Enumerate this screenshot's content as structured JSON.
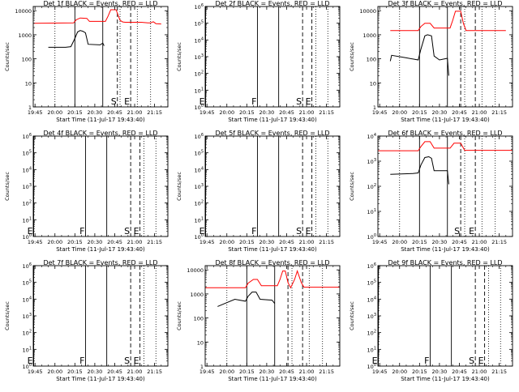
{
  "chart_data": [
    {
      "type": "line",
      "title": "Det 1f BLACK = Events, RED = LLD",
      "ylabel": "Counts/sec",
      "xlabel": "Start Time (11-Jul-17 19:43:40)",
      "x_ticks": [
        "19:45",
        "20:00",
        "20:15",
        "20:30",
        "20:45",
        "21:00",
        "21:15"
      ],
      "y_scale": "log",
      "y_ticks": [
        "1",
        "10",
        "100",
        "1000",
        "10000"
      ],
      "ylim": [
        1,
        15000
      ],
      "xlim": [
        "19:43:40",
        "21:25:00"
      ],
      "markers": [
        {
          "label": "",
          "time": "20:15",
          "style": "solid"
        },
        {
          "label": "",
          "time": "20:36",
          "style": "solid"
        },
        {
          "label": "S",
          "time": "20:47",
          "style": "dashed"
        },
        {
          "label": "E",
          "time": "20:57",
          "style": "dashed"
        }
      ],
      "gridlines": [
        "20:00",
        "20:49",
        "21:02",
        "21:12"
      ],
      "series": [
        {
          "name": "BLACK = Events",
          "color": "#000000",
          "segments": [
            [
              [
                "19:55",
                300
              ],
              [
                "20:08",
                300
              ],
              [
                "20:12",
                320
              ],
              [
                "20:15",
                700
              ],
              [
                "20:17",
                1300
              ],
              [
                "20:19",
                1500
              ],
              [
                "20:21",
                1400
              ],
              [
                "20:23",
                1200
              ],
              [
                "20:25",
                400
              ],
              [
                "20:34",
                380
              ],
              [
                "20:36",
                450
              ],
              [
                "20:37",
                350
              ]
            ]
          ]
        },
        {
          "name": "RED = LLD",
          "color": "#ff0000",
          "segments": [
            [
              [
                "19:43:40",
                3000
              ],
              [
                "20:14",
                3100
              ],
              [
                "20:16",
                4200
              ],
              [
                "20:19",
                5000
              ],
              [
                "20:24",
                4800
              ],
              [
                "20:26",
                3600
              ],
              [
                "20:38",
                3600
              ],
              [
                "20:40",
                6000
              ],
              [
                "20:42",
                11000
              ],
              [
                "20:46",
                11000
              ],
              [
                "20:49",
                4000
              ],
              [
                "20:51",
                3400
              ],
              [
                "20:53",
                3300
              ],
              [
                "21:05",
                3300
              ],
              [
                "21:10",
                3100
              ],
              [
                "21:12",
                3100
              ],
              [
                "21:14",
                3500
              ],
              [
                "21:16",
                2900
              ],
              [
                "21:20",
                2800
              ]
            ]
          ]
        }
      ]
    },
    {
      "type": "line",
      "title": "Det 2f BLACK = Events, RED = LLD",
      "ylabel": "Counts/sec",
      "xlabel": "Start Time (11-Jul-17 19:43:40)",
      "x_ticks": [
        "19:45",
        "20:00",
        "20:15",
        "20:30",
        "20:45",
        "21:00",
        "21:15"
      ],
      "y_scale": "log",
      "y_ticks": [
        "10^0",
        "10^1",
        "10^2",
        "10^3",
        "10^4",
        "10^5",
        "10^6"
      ],
      "ylim": [
        1,
        1000000
      ],
      "xlim": [
        "19:43:40",
        "21:25:00"
      ],
      "markers": [
        {
          "label": "E",
          "time": "19:44",
          "style": "solid"
        },
        {
          "label": "F",
          "time": "20:23",
          "style": "solid"
        },
        {
          "label": "",
          "time": "20:39",
          "style": "solid"
        },
        {
          "label": "S",
          "time": "20:57",
          "style": "dashed"
        },
        {
          "label": "E",
          "time": "21:04",
          "style": "dashed"
        }
      ],
      "gridlines": [
        "21:07",
        "21:16"
      ],
      "series": []
    },
    {
      "type": "line",
      "title": "Det 3f BLACK = Events, RED = LLD",
      "ylabel": "Counts/sec",
      "xlabel": "Start Time (11-Jul-17 19:43:40)",
      "x_ticks": [
        "19:45",
        "20:00",
        "20:15",
        "20:30",
        "20:45",
        "21:00",
        "21:15"
      ],
      "y_scale": "log",
      "y_ticks": [
        "1",
        "10",
        "100",
        "1000",
        "10000"
      ],
      "ylim": [
        1,
        15000
      ],
      "xlim": [
        "19:43:40",
        "21:25:00"
      ],
      "markers": [
        {
          "label": "",
          "time": "20:15",
          "style": "solid"
        },
        {
          "label": "",
          "time": "20:36",
          "style": "solid"
        },
        {
          "label": "",
          "time": "20:46",
          "style": "dashed"
        },
        {
          "label": "",
          "time": "20:57",
          "style": "dashed"
        }
      ],
      "gridlines": [
        "20:00",
        "20:49",
        "21:02",
        "21:12"
      ],
      "series": [
        {
          "name": "BLACK = Events",
          "color": "#000000",
          "segments": [
            [
              [
                "19:53",
                80
              ],
              [
                "19:54",
                140
              ],
              [
                "20:05",
                110
              ],
              [
                "20:14",
                90
              ],
              [
                "20:16",
                250
              ],
              [
                "20:19",
                900
              ],
              [
                "20:21",
                1000
              ],
              [
                "20:24",
                900
              ],
              [
                "20:26",
                130
              ],
              [
                "20:30",
                90
              ],
              [
                "20:36",
                105
              ],
              [
                "20:37",
                20
              ]
            ]
          ]
        },
        {
          "name": "RED = LLD",
          "color": "#ff0000",
          "segments": [
            [
              [
                "19:53",
                1500
              ],
              [
                "20:14",
                1500
              ],
              [
                "20:16",
                2200
              ],
              [
                "20:19",
                3000
              ],
              [
                "20:23",
                3000
              ],
              [
                "20:26",
                1900
              ],
              [
                "20:38",
                1900
              ],
              [
                "20:40",
                4000
              ],
              [
                "20:42",
                9500
              ],
              [
                "20:46",
                9500
              ],
              [
                "20:48",
                3000
              ],
              [
                "20:50",
                1500
              ],
              [
                "21:20",
                1500
              ]
            ]
          ]
        }
      ]
    },
    {
      "type": "line",
      "title": "Det 4f BLACK = Events, RED = LLD",
      "ylabel": "Counts/sec",
      "xlabel": "Start Time (11-Jul-17 19:43:40)",
      "x_ticks": [
        "19:45",
        "20:00",
        "20:15",
        "20:30",
        "20:45",
        "21:00",
        "21:15"
      ],
      "y_scale": "log",
      "y_ticks": [
        "10^0",
        "10^1",
        "10^2",
        "10^3",
        "10^4",
        "10^5",
        "10^6"
      ],
      "ylim": [
        1,
        1000000
      ],
      "xlim": [
        "19:43:40",
        "21:25:00"
      ],
      "markers": [
        {
          "label": "E",
          "time": "19:44",
          "style": "solid"
        },
        {
          "label": "F",
          "time": "20:23",
          "style": "solid"
        },
        {
          "label": "",
          "time": "20:39",
          "style": "solid"
        },
        {
          "label": "S",
          "time": "20:57",
          "style": "dashed"
        },
        {
          "label": "E",
          "time": "21:04",
          "style": "dashed"
        }
      ],
      "gridlines": [
        "21:07",
        "21:16"
      ],
      "series": []
    },
    {
      "type": "line",
      "title": "Det 5f BLACK = Events, RED = LLD",
      "ylabel": "Counts/sec",
      "xlabel": "Start Time (11-Jul-17 19:43:40)",
      "x_ticks": [
        "19:45",
        "20:00",
        "20:15",
        "20:30",
        "20:45",
        "21:00",
        "21:15"
      ],
      "y_scale": "log",
      "y_ticks": [
        "10^0",
        "10^1",
        "10^2",
        "10^3",
        "10^4",
        "10^5",
        "10^6"
      ],
      "ylim": [
        1,
        1000000
      ],
      "xlim": [
        "19:43:40",
        "21:25:00"
      ],
      "markers": [
        {
          "label": "E",
          "time": "19:44",
          "style": "solid"
        },
        {
          "label": "F",
          "time": "20:23",
          "style": "solid"
        },
        {
          "label": "",
          "time": "20:39",
          "style": "solid"
        },
        {
          "label": "S",
          "time": "20:57",
          "style": "dashed"
        },
        {
          "label": "E",
          "time": "21:04",
          "style": "dashed"
        }
      ],
      "gridlines": [
        "21:07",
        "21:16"
      ],
      "series": []
    },
    {
      "type": "line",
      "title": "Det 6f BLACK = Events, RED = LLD",
      "ylabel": "Counts/sec",
      "xlabel": "Start Time (11-Jul-17 19:43:40)",
      "x_ticks": [
        "19:45",
        "20:00",
        "20:15",
        "20:30",
        "20:45",
        "21:00",
        "21:15"
      ],
      "y_scale": "log",
      "y_ticks": [
        "10^0",
        "10^1",
        "10^2",
        "10^3",
        "10^4"
      ],
      "ylim": [
        1,
        10000
      ],
      "xlim": [
        "19:43:40",
        "21:25:00"
      ],
      "markers": [
        {
          "label": "",
          "time": "20:15",
          "style": "solid"
        },
        {
          "label": "",
          "time": "20:36",
          "style": "solid"
        },
        {
          "label": "S",
          "time": "20:46",
          "style": "dashed"
        },
        {
          "label": "E",
          "time": "20:57",
          "style": "dashed"
        }
      ],
      "gridlines": [
        "20:00",
        "20:49",
        "21:02",
        "21:12"
      ],
      "series": [
        {
          "name": "BLACK = Events",
          "color": "#000000",
          "segments": [
            [
              [
                "19:53",
                300
              ],
              [
                "20:10",
                320
              ],
              [
                "20:14",
                340
              ],
              [
                "20:16",
                700
              ],
              [
                "20:19",
                1400
              ],
              [
                "20:22",
                1500
              ],
              [
                "20:24",
                1300
              ],
              [
                "20:26",
                420
              ],
              [
                "20:36",
                420
              ],
              [
                "20:37",
                120
              ]
            ]
          ]
        },
        {
          "name": "RED = LLD",
          "color": "#ff0000",
          "segments": [
            [
              [
                "19:43:40",
                2600
              ],
              [
                "20:14",
                2600
              ],
              [
                "20:16",
                3800
              ],
              [
                "20:19",
                6000
              ],
              [
                "20:23",
                6000
              ],
              [
                "20:26",
                3300
              ],
              [
                "20:38",
                3300
              ],
              [
                "20:41",
                5200
              ],
              [
                "20:46",
                5200
              ],
              [
                "20:49",
                2700
              ],
              [
                "21:25",
                2700
              ]
            ]
          ]
        }
      ]
    },
    {
      "type": "line",
      "title": "Det 7f BLACK = Events, RED = LLD",
      "ylabel": "Counts/sec",
      "xlabel": "Start Time (11-Jul-17 19:43:40)",
      "x_ticks": [
        "19:45",
        "20:00",
        "20:15",
        "20:30",
        "20:45",
        "21:00",
        "21:15"
      ],
      "y_scale": "log",
      "y_ticks": [
        "10^0",
        "10^1",
        "10^2",
        "10^3",
        "10^4",
        "10^5",
        "10^6"
      ],
      "ylim": [
        1,
        1000000
      ],
      "xlim": [
        "19:43:40",
        "21:25:00"
      ],
      "markers": [
        {
          "label": "E",
          "time": "19:44",
          "style": "solid"
        },
        {
          "label": "F",
          "time": "20:23",
          "style": "solid"
        },
        {
          "label": "",
          "time": "20:39",
          "style": "solid"
        },
        {
          "label": "S",
          "time": "20:57",
          "style": "dashed"
        },
        {
          "label": "E",
          "time": "21:04",
          "style": "dashed"
        }
      ],
      "gridlines": [
        "21:07",
        "21:16"
      ],
      "series": []
    },
    {
      "type": "line",
      "title": "Det 8f BLACK = Events, RED = LLD",
      "ylabel": "Counts/sec",
      "xlabel": "Start Time (11-Jul-17 19:43:40)",
      "x_ticks": [
        "19:45",
        "20:00",
        "20:15",
        "20:30",
        "20:45",
        "21:00",
        "21:15"
      ],
      "y_scale": "log",
      "y_ticks": [
        "1",
        "10",
        "100",
        "1000",
        "10000"
      ],
      "ylim": [
        1,
        15000
      ],
      "xlim": [
        "19:43:40",
        "21:25:00"
      ],
      "markers": [
        {
          "label": "",
          "time": "20:15",
          "style": "solid"
        },
        {
          "label": "",
          "time": "20:36",
          "style": "solid"
        },
        {
          "label": "",
          "time": "20:46",
          "style": "dashed"
        },
        {
          "label": "",
          "time": "20:57",
          "style": "dashed"
        }
      ],
      "gridlines": [
        "20:00",
        "20:49",
        "21:02",
        "21:12"
      ],
      "series": [
        {
          "name": "BLACK = Events",
          "color": "#000000",
          "segments": [
            [
              [
                "19:53",
                300
              ],
              [
                "20:06",
                600
              ],
              [
                "20:14",
                500
              ],
              [
                "20:16",
                800
              ],
              [
                "20:19",
                1200
              ],
              [
                "20:22",
                1200
              ],
              [
                "20:25",
                600
              ],
              [
                "20:34",
                550
              ],
              [
                "20:36",
                400
              ]
            ]
          ]
        },
        {
          "name": "RED = LLD",
          "color": "#ff0000",
          "segments": [
            [
              [
                "19:43:40",
                1800
              ],
              [
                "20:14",
                1800
              ],
              [
                "20:16",
                2800
              ],
              [
                "20:20",
                4000
              ],
              [
                "20:23",
                4000
              ],
              [
                "20:26",
                2200
              ],
              [
                "20:38",
                2200
              ],
              [
                "20:40",
                4000
              ],
              [
                "20:42",
                9000
              ],
              [
                "20:44",
                9000
              ],
              [
                "20:46",
                3000
              ],
              [
                "20:48",
                1800
              ],
              [
                "20:51",
                4000
              ],
              [
                "20:53",
                9000
              ],
              [
                "20:56",
                3000
              ],
              [
                "20:58",
                1900
              ],
              [
                "21:25",
                1900
              ]
            ]
          ]
        }
      ]
    },
    {
      "type": "line",
      "title": "Det 9f BLACK = Events, RED = LLD",
      "ylabel": "Counts/sec",
      "xlabel": "Start Time (11-Jul-17 19:43:40)",
      "x_ticks": [
        "19:45",
        "20:00",
        "20:15",
        "20:30",
        "20:45",
        "21:00",
        "21:15"
      ],
      "y_scale": "log",
      "y_ticks": [
        "10^0",
        "10^1",
        "10^2",
        "10^3",
        "10^4",
        "10^5",
        "10^6"
      ],
      "ylim": [
        1,
        1000000
      ],
      "xlim": [
        "19:43:40",
        "21:25:00"
      ],
      "markers": [
        {
          "label": "E",
          "time": "19:44",
          "style": "solid"
        },
        {
          "label": "F",
          "time": "20:23",
          "style": "solid"
        },
        {
          "label": "",
          "time": "20:39",
          "style": "solid"
        },
        {
          "label": "S",
          "time": "20:57",
          "style": "dashed"
        },
        {
          "label": "E",
          "time": "21:04",
          "style": "dashed"
        }
      ],
      "gridlines": [
        "21:07",
        "21:16"
      ],
      "series": []
    }
  ]
}
